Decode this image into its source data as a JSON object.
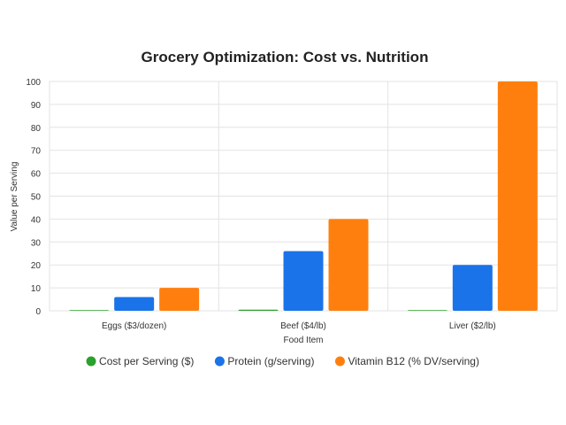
{
  "chart_data": {
    "type": "bar",
    "title": "Grocery Optimization: Cost vs. Nutrition",
    "xlabel": "Food Item",
    "ylabel": "Value per Serving",
    "categories": [
      "Eggs ($3/dozen)",
      "Beef ($4/lb)",
      "Liver ($2/lb)"
    ],
    "series": [
      {
        "name": "Cost per Serving ($)",
        "values": [
          0.25,
          0.5,
          0.25
        ],
        "color": "#2ca02c"
      },
      {
        "name": "Protein (g/serving)",
        "values": [
          6,
          26,
          20
        ],
        "color": "#1a73e8"
      },
      {
        "name": "Vitamin B12 (% DV/serving)",
        "values": [
          10,
          40,
          100
        ],
        "color": "#ff7f0e"
      }
    ],
    "ylim": [
      0,
      100
    ],
    "yticks": [
      0,
      10,
      20,
      30,
      40,
      50,
      60,
      70,
      80,
      90,
      100
    ],
    "grid": true,
    "legend": "bottom"
  }
}
